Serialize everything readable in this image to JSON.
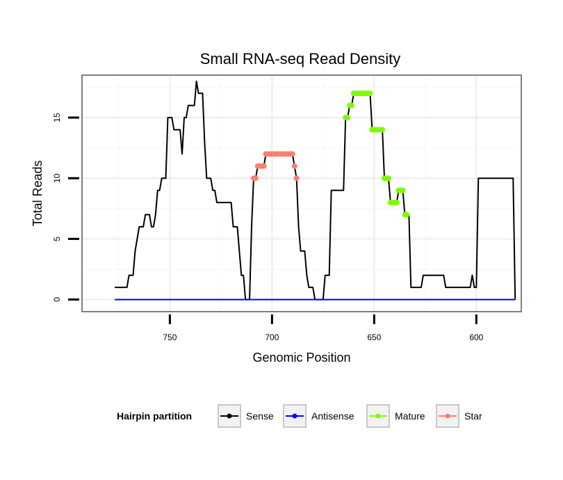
{
  "chart_data": {
    "type": "line",
    "title": "Small RNA-seq Read Density",
    "xlabel": "Genomic Position",
    "ylabel": "Total Reads",
    "x_reversed": true,
    "xlim": [
      578,
      793
    ],
    "ylim": [
      -1,
      18.5
    ],
    "x_ticks": [
      750,
      700,
      650,
      600
    ],
    "x_tick_labels": [
      "750",
      "700",
      "650",
      "600"
    ],
    "y_ticks": [
      0,
      5,
      10,
      15
    ],
    "y_tick_labels": [
      "0",
      "5",
      "10",
      "15"
    ],
    "grid": true,
    "legend": {
      "title": "Hairpin partition",
      "position": "bottom",
      "entries": [
        {
          "label": "Sense",
          "color": "#000000"
        },
        {
          "label": "Antisense",
          "color": "#0000ff"
        },
        {
          "label": "Mature",
          "color": "#7cfc00"
        },
        {
          "label": "Star",
          "color": "#fa8072"
        }
      ]
    },
    "series": [
      {
        "name": "Sense",
        "color": "#000000",
        "marker": false,
        "points": [
          [
            777,
            1
          ],
          [
            771,
            1
          ],
          [
            770,
            2
          ],
          [
            768,
            2
          ],
          [
            767,
            4
          ],
          [
            765,
            6
          ],
          [
            763,
            6
          ],
          [
            762,
            7
          ],
          [
            760,
            7
          ],
          [
            759,
            6
          ],
          [
            758,
            6
          ],
          [
            757,
            7
          ],
          [
            756,
            9
          ],
          [
            755,
            9
          ],
          [
            754,
            10
          ],
          [
            752,
            10
          ],
          [
            751,
            15
          ],
          [
            749,
            15
          ],
          [
            748,
            14
          ],
          [
            745,
            14
          ],
          [
            744,
            12
          ],
          [
            743,
            15
          ],
          [
            742,
            15
          ],
          [
            741,
            16
          ],
          [
            738,
            16
          ],
          [
            737,
            18
          ],
          [
            736,
            17
          ],
          [
            734,
            17
          ],
          [
            733,
            13
          ],
          [
            732,
            10
          ],
          [
            730,
            10
          ],
          [
            729,
            9
          ],
          [
            728,
            9
          ],
          [
            727,
            8
          ],
          [
            720,
            8
          ],
          [
            719,
            6
          ],
          [
            717,
            6
          ],
          [
            716,
            4
          ],
          [
            715,
            2
          ],
          [
            714,
            2
          ],
          [
            713,
            0
          ],
          [
            711,
            0
          ],
          [
            710,
            6
          ],
          [
            709,
            10
          ],
          [
            708,
            10
          ],
          [
            707,
            11
          ],
          [
            704,
            11
          ],
          [
            703,
            12
          ],
          [
            690,
            12
          ],
          [
            689,
            11
          ],
          [
            688,
            10
          ],
          [
            687,
            6
          ],
          [
            686,
            4
          ],
          [
            684,
            4
          ],
          [
            683,
            2
          ],
          [
            682,
            1
          ],
          [
            680,
            1
          ],
          [
            679,
            0
          ],
          [
            675,
            0
          ],
          [
            674,
            2
          ],
          [
            672,
            2
          ],
          [
            671,
            9
          ],
          [
            665,
            9
          ],
          [
            664,
            15
          ],
          [
            663,
            15
          ],
          [
            662,
            16
          ],
          [
            661,
            16
          ],
          [
            660,
            17
          ],
          [
            652,
            17
          ],
          [
            651,
            14
          ],
          [
            646,
            14
          ],
          [
            645,
            10
          ],
          [
            643,
            10
          ],
          [
            642,
            8
          ],
          [
            639,
            8
          ],
          [
            638,
            9
          ],
          [
            636,
            9
          ],
          [
            635,
            7
          ],
          [
            633,
            7
          ],
          [
            632,
            1
          ],
          [
            627,
            1
          ],
          [
            626,
            2
          ],
          [
            616,
            2
          ],
          [
            615,
            1
          ],
          [
            603,
            1
          ],
          [
            602,
            2
          ],
          [
            601,
            1
          ],
          [
            600,
            1
          ],
          [
            599,
            10
          ],
          [
            582,
            10
          ],
          [
            581,
            0
          ]
        ]
      },
      {
        "name": "Antisense",
        "color": "#0000ff",
        "marker": false,
        "points": [
          [
            777,
            0
          ],
          [
            581,
            0
          ]
        ]
      },
      {
        "name": "Mature",
        "color": "#7cfc00",
        "marker": true,
        "points": [
          [
            664,
            15
          ],
          [
            663,
            15
          ],
          [
            662,
            16
          ],
          [
            661,
            16
          ],
          [
            660,
            17
          ],
          [
            659,
            17
          ],
          [
            658,
            17
          ],
          [
            657,
            17
          ],
          [
            656,
            17
          ],
          [
            655,
            17
          ],
          [
            654,
            17
          ],
          [
            653,
            17
          ],
          [
            652,
            17
          ],
          [
            651,
            14
          ],
          [
            650,
            14
          ],
          [
            649,
            14
          ],
          [
            648,
            14
          ],
          [
            647,
            14
          ],
          [
            646,
            14
          ],
          [
            645,
            10
          ],
          [
            644,
            10
          ],
          [
            643,
            10
          ],
          [
            642,
            8
          ],
          [
            641,
            8
          ],
          [
            640,
            8
          ],
          [
            639,
            8
          ],
          [
            638,
            9
          ],
          [
            637,
            9
          ],
          [
            636,
            9
          ],
          [
            635,
            7
          ],
          [
            634,
            7
          ]
        ]
      },
      {
        "name": "Star",
        "color": "#fa8072",
        "marker": true,
        "points": [
          [
            709,
            10
          ],
          [
            708,
            10
          ],
          [
            707,
            11
          ],
          [
            706,
            11
          ],
          [
            705,
            11
          ],
          [
            704,
            11
          ],
          [
            703,
            12
          ],
          [
            702,
            12
          ],
          [
            701,
            12
          ],
          [
            700,
            12
          ],
          [
            699,
            12
          ],
          [
            698,
            12
          ],
          [
            697,
            12
          ],
          [
            696,
            12
          ],
          [
            695,
            12
          ],
          [
            694,
            12
          ],
          [
            693,
            12
          ],
          [
            692,
            12
          ],
          [
            691,
            12
          ],
          [
            690,
            12
          ],
          [
            689,
            11
          ],
          [
            688,
            10
          ]
        ]
      }
    ]
  }
}
